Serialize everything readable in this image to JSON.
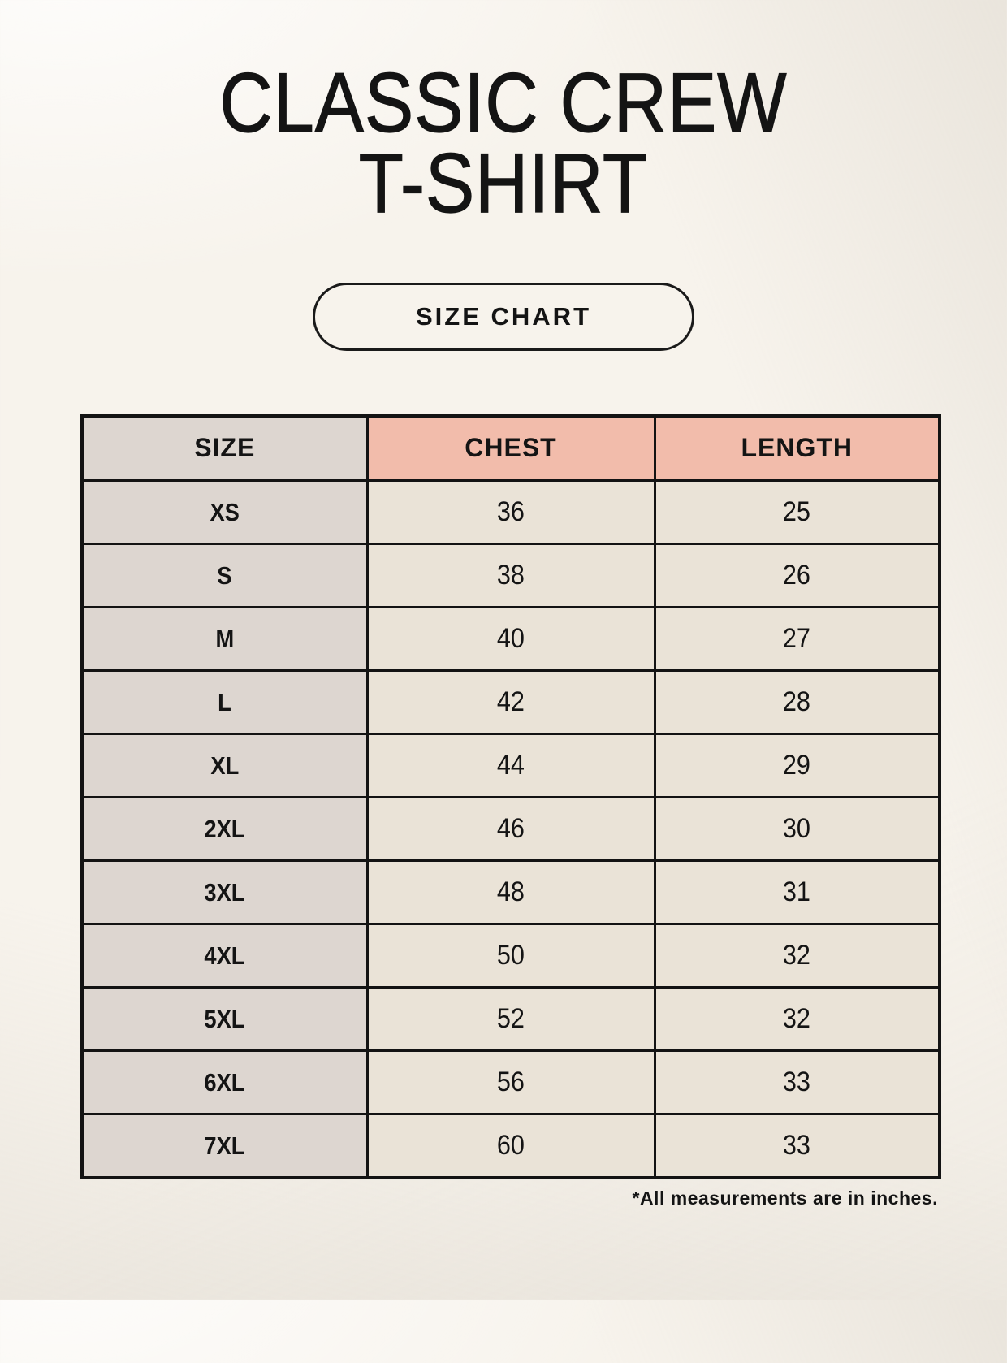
{
  "header": {
    "title_line1": "CLASSIC CREW",
    "title_line2": "T-SHIRT",
    "size_chart_label": "SIZE CHART"
  },
  "table": {
    "columns": [
      "SIZE",
      "CHEST",
      "LENGTH"
    ],
    "rows": [
      {
        "size": "XS",
        "chest": "36",
        "length": "25"
      },
      {
        "size": "S",
        "chest": "38",
        "length": "26"
      },
      {
        "size": "M",
        "chest": "40",
        "length": "27"
      },
      {
        "size": "L",
        "chest": "42",
        "length": "28"
      },
      {
        "size": "XL",
        "chest": "44",
        "length": "29"
      },
      {
        "size": "2XL",
        "chest": "46",
        "length": "30"
      },
      {
        "size": "3XL",
        "chest": "48",
        "length": "31"
      },
      {
        "size": "4XL",
        "chest": "50",
        "length": "32"
      },
      {
        "size": "5XL",
        "chest": "52",
        "length": "32"
      },
      {
        "size": "6XL",
        "chest": "56",
        "length": "33"
      },
      {
        "size": "7XL",
        "chest": "60",
        "length": "33"
      }
    ]
  },
  "footnote": "*All measurements are in inches.",
  "colors": {
    "page_background": "#f7f3ec",
    "accent_header": "#f2bcab",
    "size_column": "#ddd6d0",
    "data_cell": "#eae3d7",
    "table_border": "#131313",
    "text": "#141414"
  }
}
